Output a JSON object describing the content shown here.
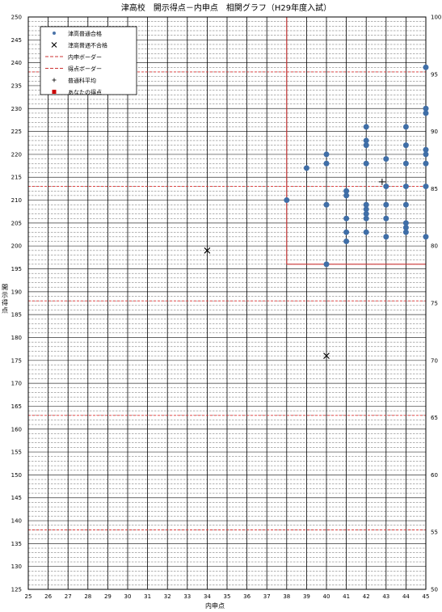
{
  "chart_data": {
    "type": "scatter",
    "title": "津高校　開示得点－内申点　相関グラフ（H29年度入試）",
    "xlabel": "内申点",
    "ylabel": "開示得点",
    "xlim": [
      25,
      45
    ],
    "ylim": [
      125,
      250
    ],
    "y2lim": [
      50,
      100
    ],
    "x_ticks": [
      25,
      26,
      27,
      28,
      29,
      30,
      31,
      32,
      33,
      34,
      35,
      36,
      37,
      38,
      39,
      40,
      41,
      42,
      43,
      44,
      45
    ],
    "y_ticks": [
      125,
      130,
      135,
      140,
      145,
      150,
      155,
      160,
      165,
      170,
      175,
      180,
      185,
      190,
      195,
      200,
      205,
      210,
      215,
      220,
      225,
      230,
      235,
      240,
      245,
      250
    ],
    "y2_ticks": [
      50,
      55,
      60,
      65,
      70,
      75,
      80,
      85,
      90,
      95,
      100
    ],
    "grid": true,
    "legend": {
      "position": "top-left",
      "items": [
        {
          "label": "津高普通合格",
          "marker": "dot",
          "color": "#4a73a8"
        },
        {
          "label": "津高普通不合格",
          "marker": "x",
          "color": "#000000"
        },
        {
          "label": "内申ボーダー",
          "marker": "dash",
          "color": "#cc3333"
        },
        {
          "label": "得点ボーダー",
          "marker": "dash",
          "color": "#cc3333"
        },
        {
          "label": "普通科平均",
          "marker": "plus",
          "color": "#000000"
        },
        {
          "label": "あなたの得点",
          "marker": "square",
          "color": "#cc0000"
        }
      ]
    },
    "series": [
      {
        "name": "津高普通合格",
        "marker": "dot",
        "color": "#3f6ea7",
        "points": [
          [
            38,
            210
          ],
          [
            39,
            217
          ],
          [
            40,
            220
          ],
          [
            40,
            218
          ],
          [
            40,
            209
          ],
          [
            40,
            196
          ],
          [
            41,
            212
          ],
          [
            41,
            211
          ],
          [
            41,
            206
          ],
          [
            41,
            203
          ],
          [
            41,
            201
          ],
          [
            42,
            226
          ],
          [
            42,
            223
          ],
          [
            42,
            222
          ],
          [
            42,
            218
          ],
          [
            42,
            209
          ],
          [
            42,
            208
          ],
          [
            42,
            207
          ],
          [
            42,
            206
          ],
          [
            42,
            203
          ],
          [
            43,
            219
          ],
          [
            43,
            213
          ],
          [
            43,
            209
          ],
          [
            43,
            206
          ],
          [
            43,
            202
          ],
          [
            44,
            226
          ],
          [
            44,
            222
          ],
          [
            44,
            218
          ],
          [
            44,
            213
          ],
          [
            44,
            209
          ],
          [
            44,
            205
          ],
          [
            44,
            204
          ],
          [
            44,
            203
          ],
          [
            45,
            239
          ],
          [
            45,
            230
          ],
          [
            45,
            229
          ],
          [
            45,
            221
          ],
          [
            45,
            220
          ],
          [
            45,
            218
          ],
          [
            45,
            213
          ],
          [
            45,
            202
          ]
        ]
      },
      {
        "name": "津高普通不合格",
        "marker": "x",
        "color": "#000000",
        "points": [
          [
            34,
            199
          ],
          [
            40,
            176
          ]
        ]
      },
      {
        "name": "普通科平均",
        "marker": "plus",
        "color": "#000000",
        "points": [
          [
            42.8,
            214
          ]
        ]
      }
    ],
    "borders": {
      "naishin": 38,
      "score": 196,
      "color": "#cc3333"
    },
    "red_hlines": [
      238,
      213,
      188,
      163,
      138
    ],
    "red_hline_color": "#dd3333"
  }
}
